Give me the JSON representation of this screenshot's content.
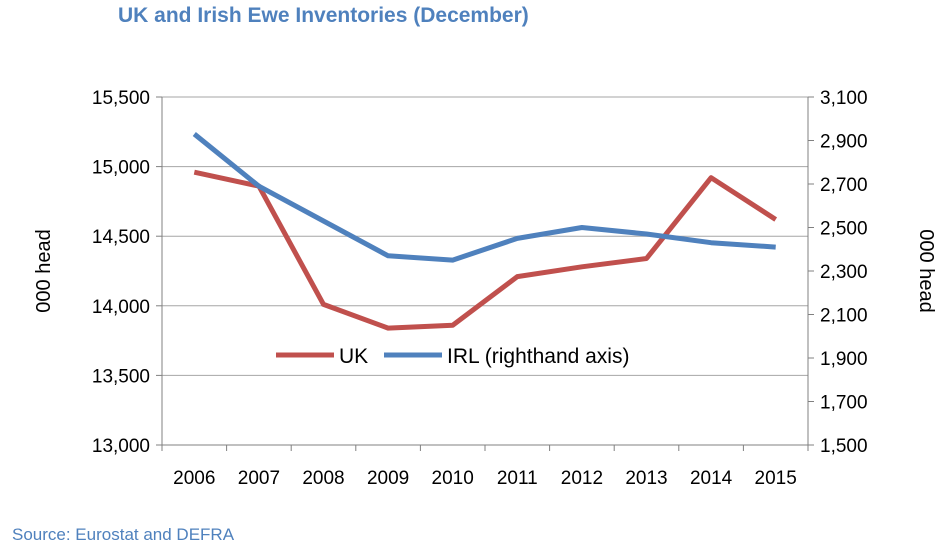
{
  "chart_data": {
    "type": "line",
    "title": "UK and Irish Ewe Inventories (December)",
    "source": "Source: Eurostat and DEFRA",
    "categories": [
      "2006",
      "2007",
      "2008",
      "2009",
      "2010",
      "2011",
      "2012",
      "2013",
      "2014",
      "2015"
    ],
    "ylabel_left": "000 head",
    "ylabel_right": "000 head",
    "ylim_left": [
      13000,
      15500
    ],
    "ylim_right": [
      1500,
      3100
    ],
    "yticks_left": [
      "13,000",
      "13,500",
      "14,000",
      "14,500",
      "15,000",
      "15,500"
    ],
    "yticks_right": [
      "1,500",
      "1,700",
      "1,900",
      "2,100",
      "2,300",
      "2,500",
      "2,700",
      "2,900",
      "3,100"
    ],
    "grid": "horizontal",
    "legend": "center",
    "series": [
      {
        "name": "UK",
        "axis": "left",
        "color": "#c0504d",
        "values": [
          14960,
          14860,
          14010,
          13840,
          13860,
          14210,
          14280,
          14340,
          14920,
          14620
        ]
      },
      {
        "name": "IRL (righthand axis)",
        "axis": "right",
        "color": "#4f81bd",
        "values": [
          2930,
          2690,
          2530,
          2370,
          2350,
          2450,
          2500,
          2470,
          2430,
          2410
        ]
      }
    ]
  }
}
